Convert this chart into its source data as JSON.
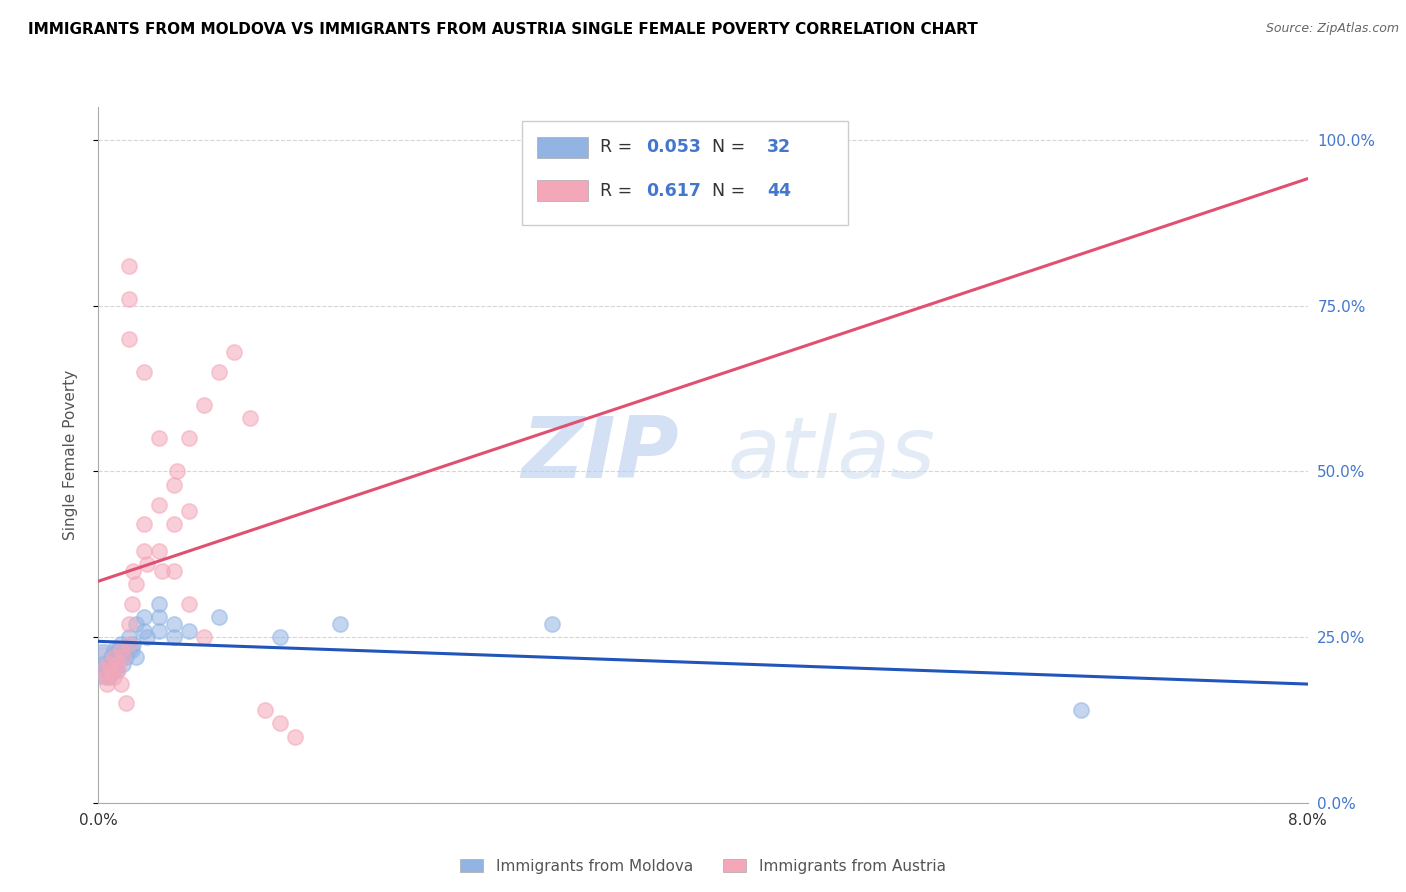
{
  "title": "IMMIGRANTS FROM MOLDOVA VS IMMIGRANTS FROM AUSTRIA SINGLE FEMALE POVERTY CORRELATION CHART",
  "source": "Source: ZipAtlas.com",
  "ylabel": "Single Female Poverty",
  "ylabel_right_labels": [
    "0.0%",
    "25.0%",
    "50.0%",
    "75.0%",
    "100.0%"
  ],
  "ylabel_right_values": [
    0.0,
    0.25,
    0.5,
    0.75,
    1.0
  ],
  "xlim": [
    0.0,
    0.08
  ],
  "ylim": [
    0.0,
    1.05
  ],
  "legend_moldova": "Immigrants from Moldova",
  "legend_austria": "Immigrants from Austria",
  "R_moldova": 0.053,
  "N_moldova": 32,
  "R_austria": 0.617,
  "N_austria": 44,
  "color_moldova": "#92B4E3",
  "color_austria": "#F4A7B9",
  "line_color_moldova": "#2255BB",
  "line_color_austria": "#E05070",
  "watermark_zip": "ZIP",
  "watermark_atlas": "atlas",
  "moldova_points": [
    [
      0.0003,
      0.21
    ],
    [
      0.0005,
      0.2
    ],
    [
      0.0007,
      0.19
    ],
    [
      0.0008,
      0.22
    ],
    [
      0.001,
      0.23
    ],
    [
      0.001,
      0.21
    ],
    [
      0.0012,
      0.2
    ],
    [
      0.0013,
      0.23
    ],
    [
      0.0015,
      0.22
    ],
    [
      0.0015,
      0.24
    ],
    [
      0.0016,
      0.21
    ],
    [
      0.0018,
      0.22
    ],
    [
      0.002,
      0.23
    ],
    [
      0.002,
      0.25
    ],
    [
      0.0022,
      0.23
    ],
    [
      0.0023,
      0.24
    ],
    [
      0.0025,
      0.27
    ],
    [
      0.0025,
      0.22
    ],
    [
      0.003,
      0.26
    ],
    [
      0.003,
      0.28
    ],
    [
      0.0032,
      0.25
    ],
    [
      0.004,
      0.3
    ],
    [
      0.004,
      0.28
    ],
    [
      0.004,
      0.26
    ],
    [
      0.005,
      0.27
    ],
    [
      0.005,
      0.25
    ],
    [
      0.006,
      0.26
    ],
    [
      0.008,
      0.28
    ],
    [
      0.012,
      0.25
    ],
    [
      0.016,
      0.27
    ],
    [
      0.03,
      0.27
    ],
    [
      0.065,
      0.14
    ]
  ],
  "austria_points": [
    [
      0.0003,
      0.2
    ],
    [
      0.0005,
      0.19
    ],
    [
      0.0006,
      0.18
    ],
    [
      0.0007,
      0.21
    ],
    [
      0.0008,
      0.2
    ],
    [
      0.001,
      0.22
    ],
    [
      0.001,
      0.19
    ],
    [
      0.0012,
      0.21
    ],
    [
      0.0013,
      0.2
    ],
    [
      0.0015,
      0.23
    ],
    [
      0.0015,
      0.18
    ],
    [
      0.0016,
      0.22
    ],
    [
      0.0018,
      0.15
    ],
    [
      0.002,
      0.24
    ],
    [
      0.002,
      0.27
    ],
    [
      0.0022,
      0.3
    ],
    [
      0.0023,
      0.35
    ],
    [
      0.0025,
      0.33
    ],
    [
      0.003,
      0.38
    ],
    [
      0.003,
      0.42
    ],
    [
      0.0032,
      0.36
    ],
    [
      0.004,
      0.45
    ],
    [
      0.004,
      0.38
    ],
    [
      0.0042,
      0.35
    ],
    [
      0.005,
      0.48
    ],
    [
      0.005,
      0.42
    ],
    [
      0.0052,
      0.5
    ],
    [
      0.006,
      0.55
    ],
    [
      0.006,
      0.44
    ],
    [
      0.007,
      0.6
    ],
    [
      0.008,
      0.65
    ],
    [
      0.009,
      0.68
    ],
    [
      0.01,
      0.58
    ],
    [
      0.011,
      0.14
    ],
    [
      0.012,
      0.12
    ],
    [
      0.013,
      0.1
    ],
    [
      0.002,
      0.81
    ],
    [
      0.002,
      0.76
    ],
    [
      0.002,
      0.7
    ],
    [
      0.003,
      0.65
    ],
    [
      0.004,
      0.55
    ],
    [
      0.005,
      0.35
    ],
    [
      0.006,
      0.3
    ],
    [
      0.007,
      0.25
    ]
  ]
}
